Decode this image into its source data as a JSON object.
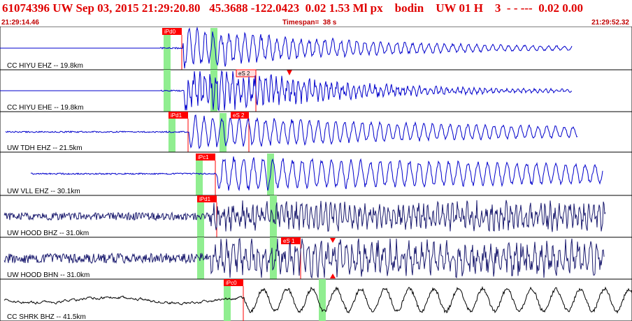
{
  "header": {
    "title": "61074396 UW Sep 03, 2015 21:29:20.80   45.3688 -122.0423  0.02 1.53 Ml px    bodin    UW 01 H    3  - - ---  0.02 0.00",
    "start_time": "21:29:14.46",
    "timespan": "Timespan=  38 s",
    "end_time": "21:29:52.32"
  },
  "colors": {
    "accent_red": "#e00000",
    "trace_blue": "#0000cc",
    "trace_navy": "#1a1a6e",
    "window_green": "#90ee90",
    "pick_red": "#ff0000"
  },
  "traces": [
    {
      "label": "CC HIYU EHZ -- 19.8km",
      "color": "#0000cc",
      "pick": "iPd0",
      "pick2": ""
    },
    {
      "label": "CC HIYU EHE -- 19.8km",
      "color": "#0000cc",
      "pick": "eS 2",
      "pick2": ""
    },
    {
      "label": "UW TDH EHZ -- 21.5km",
      "color": "#0000cc",
      "pick": "iPd1",
      "pick2": "eS 2"
    },
    {
      "label": "UW VLL EHZ -- 30.1km",
      "color": "#0000cc",
      "pick": "iPc1",
      "pick2": ""
    },
    {
      "label": "UW HOOD BHZ -- 31.0km",
      "color": "#1a1a6e",
      "pick": "iPd1",
      "pick2": ""
    },
    {
      "label": "UW HOOD BHN -- 31.0km",
      "color": "#1a1a6e",
      "pick": "eS 1",
      "pick2": ""
    },
    {
      "label": "CC SHRK BHZ -- 41.5km",
      "color": "#000000",
      "pick": "iPc0",
      "pick2": ""
    }
  ]
}
